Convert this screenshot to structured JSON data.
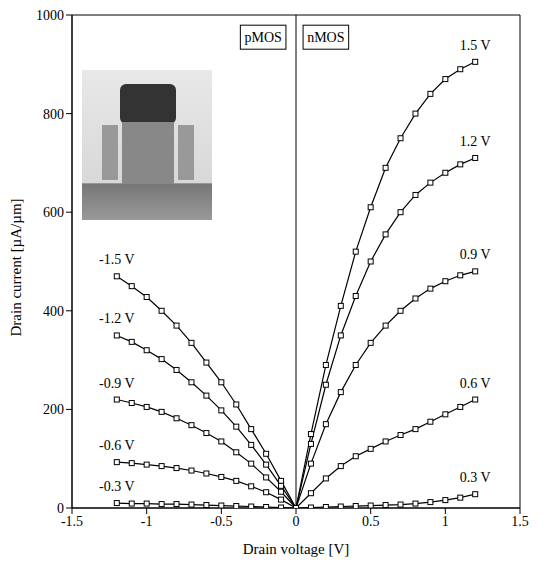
{
  "chart_data": {
    "type": "line",
    "x_label": "Drain voltage [V]",
    "y_label": "Drain current [µA/µm]",
    "xlim": [
      -1.5,
      1.5
    ],
    "xticks": [
      -1.5,
      -1,
      -0.5,
      0,
      0.5,
      1,
      1.5
    ],
    "ylim": [
      0,
      1000
    ],
    "yticks": [
      0,
      200,
      400,
      600,
      800,
      1000
    ],
    "grid": false,
    "legend": "none",
    "marker": "square",
    "color": "#000000",
    "vlines": [
      0
    ],
    "annotations": [
      {
        "text": "pMOS",
        "x": -0.22,
        "y": 955
      },
      {
        "text": "nMOS",
        "x": 0.2,
        "y": 955
      }
    ],
    "series": [
      {
        "name": "1.5 V",
        "x": [
          0,
          0.1,
          0.2,
          0.3,
          0.4,
          0.5,
          0.6,
          0.7,
          0.8,
          0.9,
          1.0,
          1.1,
          1.2
        ],
        "values": [
          0,
          150,
          290,
          410,
          520,
          610,
          690,
          750,
          800,
          840,
          870,
          890,
          905
        ]
      },
      {
        "name": "1.2 V",
        "x": [
          0,
          0.1,
          0.2,
          0.3,
          0.4,
          0.5,
          0.6,
          0.7,
          0.8,
          0.9,
          1.0,
          1.1,
          1.2
        ],
        "values": [
          0,
          130,
          250,
          350,
          430,
          500,
          555,
          600,
          635,
          660,
          680,
          697,
          710
        ]
      },
      {
        "name": "0.9 V",
        "x": [
          0,
          0.1,
          0.2,
          0.3,
          0.4,
          0.5,
          0.6,
          0.7,
          0.8,
          0.9,
          1.0,
          1.1,
          1.2
        ],
        "values": [
          0,
          90,
          170,
          235,
          290,
          335,
          370,
          400,
          425,
          445,
          460,
          472,
          480
        ]
      },
      {
        "name": "0.6 V",
        "x": [
          0,
          0.1,
          0.2,
          0.3,
          0.4,
          0.5,
          0.6,
          0.7,
          0.8,
          0.9,
          1.0,
          1.1,
          1.2
        ],
        "values": [
          0,
          30,
          60,
          85,
          105,
          120,
          135,
          148,
          160,
          175,
          190,
          205,
          220
        ]
      },
      {
        "name": "0.3 V",
        "x": [
          0,
          0.1,
          0.2,
          0.3,
          0.4,
          0.5,
          0.6,
          0.7,
          0.8,
          0.9,
          1.0,
          1.1,
          1.2
        ],
        "values": [
          0,
          1,
          2,
          3,
          4,
          5,
          6,
          7,
          9,
          12,
          16,
          21,
          28
        ]
      },
      {
        "name": "-1.5 V",
        "x": [
          0,
          -0.1,
          -0.2,
          -0.3,
          -0.4,
          -0.5,
          -0.6,
          -0.7,
          -0.8,
          -0.9,
          -1.0,
          -1.1,
          -1.2
        ],
        "values": [
          0,
          55,
          110,
          160,
          210,
          255,
          295,
          335,
          370,
          400,
          428,
          450,
          470
        ]
      },
      {
        "name": "-1.2 V",
        "x": [
          0,
          -0.1,
          -0.2,
          -0.3,
          -0.4,
          -0.5,
          -0.6,
          -0.7,
          -0.8,
          -0.9,
          -1.0,
          -1.1,
          -1.2
        ],
        "values": [
          0,
          45,
          88,
          128,
          165,
          198,
          228,
          255,
          280,
          302,
          320,
          337,
          350
        ]
      },
      {
        "name": "-0.9 V",
        "x": [
          0,
          -0.1,
          -0.2,
          -0.3,
          -0.4,
          -0.5,
          -0.6,
          -0.7,
          -0.8,
          -0.9,
          -1.0,
          -1.1,
          -1.2
        ],
        "values": [
          0,
          33,
          62,
          90,
          113,
          135,
          152,
          168,
          182,
          195,
          205,
          213,
          220
        ]
      },
      {
        "name": "-0.6 V",
        "x": [
          0,
          -0.1,
          -0.2,
          -0.3,
          -0.4,
          -0.5,
          -0.6,
          -0.7,
          -0.8,
          -0.9,
          -1.0,
          -1.1,
          -1.2
        ],
        "values": [
          0,
          17,
          32,
          44,
          55,
          63,
          70,
          76,
          81,
          85,
          88,
          91,
          93
        ]
      },
      {
        "name": "-0.3 V",
        "x": [
          0,
          -0.1,
          -0.2,
          -0.3,
          -0.4,
          -0.5,
          -0.6,
          -0.7,
          -0.8,
          -0.9,
          -1.0,
          -1.1,
          -1.2
        ],
        "values": [
          0,
          1,
          2,
          3,
          4,
          5,
          6,
          7,
          8,
          8,
          9,
          9,
          10
        ]
      }
    ]
  }
}
